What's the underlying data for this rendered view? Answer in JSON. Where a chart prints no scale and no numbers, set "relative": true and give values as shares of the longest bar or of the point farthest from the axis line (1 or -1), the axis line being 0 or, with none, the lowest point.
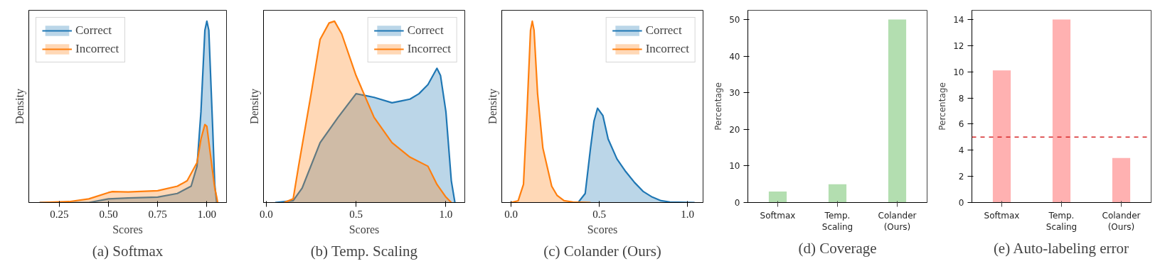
{
  "chart_data": [
    {
      "type": "area",
      "title": "(a) Softmax",
      "xlabel": "Scores",
      "ylabel": "Density",
      "relative": true,
      "legend": "top left",
      "grid": false,
      "xlim": [
        0.095,
        1.1
      ],
      "xticks": [
        {
          "value": 0.25,
          "label": "0.25"
        },
        {
          "value": 0.5,
          "label": "0.50"
        },
        {
          "value": 0.75,
          "label": "0.75"
        },
        {
          "value": 1.0,
          "label": "1.00"
        }
      ],
      "series": [
        {
          "name": "Correct",
          "color": "#1f77b4",
          "x": [
            0.15,
            0.4,
            0.5,
            0.6,
            0.75,
            0.85,
            0.92,
            0.95,
            0.97,
            0.99,
            1.0,
            1.01,
            1.03,
            1.04,
            1.05
          ],
          "values": [
            0,
            0,
            0.02,
            0.025,
            0.03,
            0.05,
            0.09,
            0.2,
            0.5,
            0.95,
            1.0,
            0.95,
            0.4,
            0.1,
            0
          ]
        },
        {
          "name": "Incorrect",
          "color": "#ff7f0e",
          "x": [
            0.15,
            0.3,
            0.4,
            0.5,
            0.52,
            0.6,
            0.75,
            0.85,
            0.9,
            0.95,
            0.97,
            0.99,
            1.0,
            1.02,
            1.04,
            1.05,
            1.055
          ],
          "values": [
            0,
            0.005,
            0.02,
            0.055,
            0.06,
            0.058,
            0.065,
            0.09,
            0.12,
            0.22,
            0.35,
            0.43,
            0.42,
            0.25,
            0.08,
            0.03,
            0
          ]
        }
      ]
    },
    {
      "type": "area",
      "title": "(b) Temp. Scaling",
      "xlabel": "Scores",
      "ylabel": "Density",
      "relative": true,
      "legend": "top right",
      "grid": false,
      "xlim": [
        -0.015,
        1.105
      ],
      "xticks": [
        {
          "value": 0,
          "label": "0.0"
        },
        0.5,
        {
          "value": 1,
          "label": "1.0"
        }
      ],
      "series": [
        {
          "name": "Correct",
          "color": "#1f77b4",
          "x": [
            0.05,
            0.15,
            0.2,
            0.3,
            0.4,
            0.5,
            0.55,
            0.6,
            0.7,
            0.75,
            0.8,
            0.85,
            0.9,
            0.95,
            0.97,
            1.0,
            1.03,
            1.05
          ],
          "values": [
            0,
            0.01,
            0.08,
            0.33,
            0.47,
            0.6,
            0.59,
            0.58,
            0.55,
            0.56,
            0.57,
            0.6,
            0.65,
            0.74,
            0.7,
            0.5,
            0.12,
            0
          ]
        },
        {
          "name": "Incorrect",
          "color": "#ff7f0e",
          "x": [
            0.1,
            0.15,
            0.18,
            0.25,
            0.3,
            0.35,
            0.38,
            0.42,
            0.5,
            0.6,
            0.7,
            0.8,
            0.9,
            0.95,
            1.0,
            1.03
          ],
          "values": [
            0,
            0.02,
            0.2,
            0.6,
            0.9,
            0.99,
            1.0,
            0.93,
            0.7,
            0.47,
            0.33,
            0.25,
            0.2,
            0.1,
            0.03,
            0
          ]
        }
      ]
    },
    {
      "type": "area",
      "title": "(c) Colander (Ours)",
      "xlabel": "Scores",
      "ylabel": "Density",
      "relative": true,
      "legend": "top right",
      "grid": false,
      "xlim": [
        -0.053,
        1.088
      ],
      "xticks": [
        {
          "value": 0,
          "label": "0.0"
        },
        0.5,
        {
          "value": 1,
          "label": "1.0"
        }
      ],
      "series": [
        {
          "name": "Correct",
          "color": "#1f77b4",
          "x": [
            0.38,
            0.42,
            0.45,
            0.47,
            0.49,
            0.52,
            0.55,
            0.6,
            0.65,
            0.7,
            0.75,
            0.8,
            0.85,
            0.9,
            1.04
          ],
          "values": [
            0,
            0.05,
            0.3,
            0.45,
            0.52,
            0.48,
            0.35,
            0.24,
            0.17,
            0.11,
            0.06,
            0.03,
            0.01,
            0.003,
            0
          ]
        },
        {
          "name": "Incorrect",
          "color": "#ff7f0e",
          "x": [
            0.0,
            0.04,
            0.07,
            0.09,
            0.11,
            0.12,
            0.13,
            0.15,
            0.18,
            0.23,
            0.26,
            0.3,
            0.35,
            0.45
          ],
          "values": [
            0,
            0.01,
            0.1,
            0.5,
            0.95,
            1.0,
            0.95,
            0.6,
            0.3,
            0.09,
            0.04,
            0.01,
            0.003,
            0
          ]
        }
      ]
    },
    {
      "type": "bar",
      "title": "(d) Coverage",
      "ylabel": "Percentage",
      "categories": [
        "Softmax",
        "Temp.\nScaling",
        "Colander\n(Ours)"
      ],
      "values": [
        3,
        5,
        50
      ],
      "color": "#b3deb0",
      "grid": false,
      "ylim": [
        0,
        52.5
      ],
      "yticks": [
        0,
        10,
        20,
        30,
        40,
        50
      ]
    },
    {
      "type": "bar",
      "title": "(e) Auto-labeling error",
      "ylabel": "Percentage",
      "categories": [
        "Softmax",
        "Temp.\nScaling",
        "Colander\n(Ours)"
      ],
      "values": [
        10.1,
        14,
        3.4
      ],
      "color": "#ffb1b1",
      "grid": false,
      "ylim": [
        0,
        14.7
      ],
      "yticks": [
        0,
        2,
        4,
        6,
        8,
        10,
        12,
        14
      ],
      "ref_lines": [
        {
          "axis": "y",
          "value": 5,
          "color": "#d62728",
          "line_style": "dashed"
        }
      ]
    }
  ]
}
